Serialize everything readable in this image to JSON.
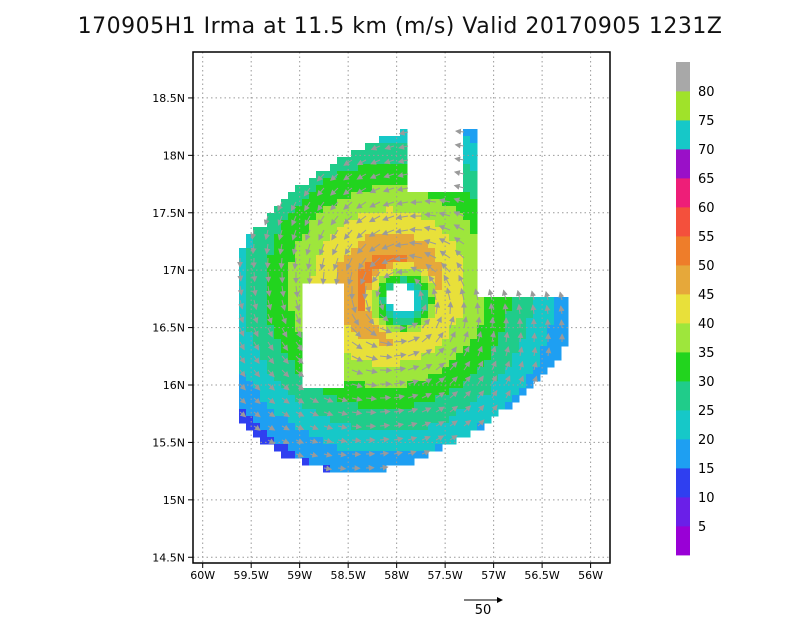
{
  "chart_data": {
    "type": "heatmap",
    "title": "170905H1 Irma at 11.5 km (m/s) Valid 20170905 1231Z",
    "xlabel": "",
    "ylabel": "",
    "xlim": [
      -60.1,
      -55.8
    ],
    "ylim": [
      14.45,
      18.9
    ],
    "x_ticks": [
      {
        "value": -60,
        "label": "60W"
      },
      {
        "value": -59.5,
        "label": "59.5W"
      },
      {
        "value": -59,
        "label": "59W"
      },
      {
        "value": -58.5,
        "label": "58.5W"
      },
      {
        "value": -58,
        "label": "58W"
      },
      {
        "value": -57.5,
        "label": "57.5W"
      },
      {
        "value": -57,
        "label": "57W"
      },
      {
        "value": -56.5,
        "label": "56.5W"
      },
      {
        "value": -56,
        "label": "56W"
      }
    ],
    "y_ticks": [
      {
        "value": 14.5,
        "label": "14.5N"
      },
      {
        "value": 15,
        "label": "15N"
      },
      {
        "value": 15.5,
        "label": "15.5N"
      },
      {
        "value": 16,
        "label": "16N"
      },
      {
        "value": 16.5,
        "label": "16.5N"
      },
      {
        "value": 17,
        "label": "17N"
      },
      {
        "value": 17.5,
        "label": "17.5N"
      },
      {
        "value": 18,
        "label": "18N"
      },
      {
        "value": 18.5,
        "label": "18.5N"
      }
    ],
    "grid": true,
    "center": {
      "lon": -57.95,
      "lat": 16.75
    },
    "colorbar": {
      "levels": [
        5,
        10,
        15,
        20,
        25,
        30,
        35,
        40,
        45,
        50,
        55,
        60,
        65,
        70,
        75,
        80
      ],
      "colors": [
        "#9900d6",
        "#6a1fe8",
        "#2f3ff0",
        "#1e9ff2",
        "#16c8c8",
        "#20cc8a",
        "#22d41e",
        "#9ee63c",
        "#e8e03a",
        "#e6a83a",
        "#ee7d2a",
        "#f4503c",
        "#ee1e78",
        "#9a10c8",
        "#16c8c8",
        "#a0e22a",
        "#a8a8a8"
      ]
    },
    "reference_vector": {
      "label": "50",
      "value": 50
    }
  }
}
